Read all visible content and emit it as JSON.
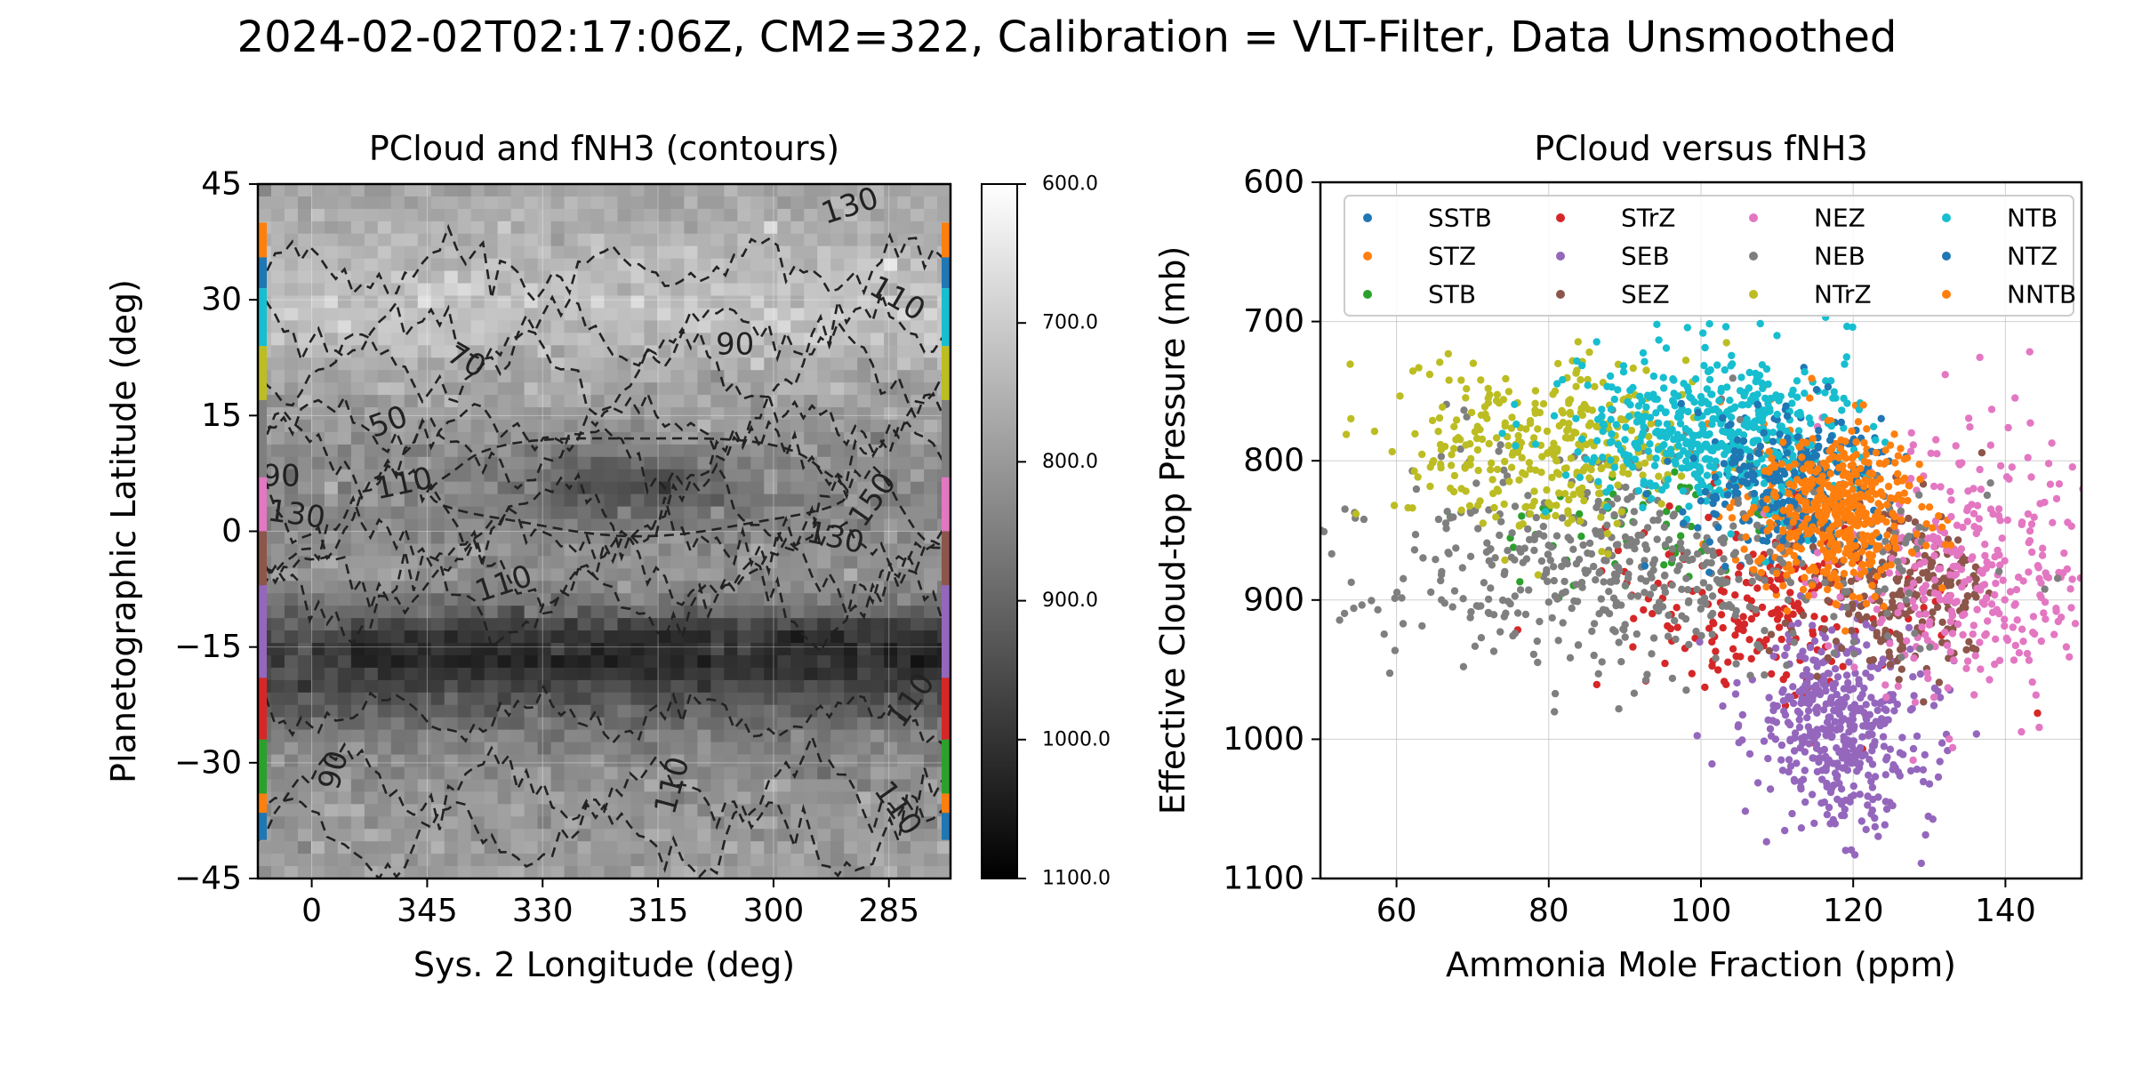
{
  "figure": {
    "suptitle": "2024-02-02T02:17:06Z, CM2=322, Calibration = VLT-Filter, Data Unsmoothed"
  },
  "chart_data": [
    {
      "type": "heatmap",
      "title": "PCloud and fNH3 (contours)",
      "xlabel": "Sys. 2 Longitude (deg)",
      "ylabel": "Planetographic Latitude (deg)",
      "xlim": [
        7,
        277
      ],
      "ylim": [
        -45,
        45
      ],
      "x_reversed": true,
      "xticks": [
        0,
        345,
        330,
        315,
        300,
        285
      ],
      "xtick_labels": [
        "0",
        "345",
        "330",
        "315",
        "300",
        "285"
      ],
      "yticks": [
        45,
        30,
        15,
        0,
        -15,
        -30,
        -45
      ],
      "ytick_labels": [
        "45",
        "30",
        "15",
        "0",
        "−15",
        "−30",
        "−45"
      ],
      "grid": true,
      "colormap": "gray_r",
      "colorbar": {
        "vmin": 600,
        "vmax": 1100,
        "ticks": [
          600,
          700,
          800,
          900,
          1000,
          1100
        ],
        "tick_labels": [
          "600.0",
          "700.0",
          "800.0",
          "900.0",
          "1000.0",
          "1100.0"
        ]
      },
      "profile_lat": [
        45,
        40,
        35,
        30,
        25,
        20,
        15,
        10,
        5,
        0,
        -5,
        -10,
        -13,
        -17,
        -22,
        -27,
        -32,
        -37,
        -45
      ],
      "profile_pressure": [
        780,
        760,
        740,
        715,
        730,
        770,
        790,
        820,
        830,
        830,
        800,
        880,
        1000,
        1020,
        930,
        850,
        820,
        800,
        790
      ],
      "contour_labels": [
        {
          "text": "130",
          "x": 290,
          "y": 42,
          "angle": -18
        },
        {
          "text": "110",
          "x": 284,
          "y": 30,
          "angle": 30
        },
        {
          "text": "90",
          "x": 305,
          "y": 24,
          "angle": 0
        },
        {
          "text": "70",
          "x": 340,
          "y": 22,
          "angle": 30
        },
        {
          "text": "50",
          "x": 350,
          "y": 14,
          "angle": -20
        },
        {
          "text": "90",
          "x": 364,
          "y": 7,
          "angle": 0
        },
        {
          "text": "110",
          "x": 348,
          "y": 6,
          "angle": -12
        },
        {
          "text": "130",
          "x": 362,
          "y": 2,
          "angle": 8
        },
        {
          "text": "150",
          "x": 287,
          "y": 4,
          "angle": -55
        },
        {
          "text": "130",
          "x": 292,
          "y": -1,
          "angle": 12
        },
        {
          "text": "110",
          "x": 335,
          "y": -7,
          "angle": -18
        },
        {
          "text": "90",
          "x": 357,
          "y": -31,
          "angle": -75
        },
        {
          "text": "110",
          "x": 313,
          "y": -33,
          "angle": -75
        },
        {
          "text": "110",
          "x": 282,
          "y": -22,
          "angle": -55
        },
        {
          "text": "110",
          "x": 284,
          "y": -36,
          "angle": 55
        }
      ],
      "belt_bands": [
        {
          "name": "NNTB",
          "lat": [
            35.5,
            40
          ],
          "color": "#ff7f0e"
        },
        {
          "name": "NTZ",
          "lat": [
            31.5,
            35.5
          ],
          "color": "#1f77b4"
        },
        {
          "name": "NTB",
          "lat": [
            24,
            31.5
          ],
          "color": "#17becf"
        },
        {
          "name": "NTrZ",
          "lat": [
            17,
            24
          ],
          "color": "#bcbd22"
        },
        {
          "name": "NEB",
          "lat": [
            7,
            17
          ],
          "color": "#7f7f7f"
        },
        {
          "name": "NEZ",
          "lat": [
            0,
            7
          ],
          "color": "#e377c2"
        },
        {
          "name": "SEZ",
          "lat": [
            -7,
            0
          ],
          "color": "#8c564b"
        },
        {
          "name": "SEB",
          "lat": [
            -19,
            -7
          ],
          "color": "#9467bd"
        },
        {
          "name": "STrZ",
          "lat": [
            -27,
            -19
          ],
          "color": "#d62728"
        },
        {
          "name": "STB",
          "lat": [
            -34,
            -27
          ],
          "color": "#2ca02c"
        },
        {
          "name": "STZ",
          "lat": [
            -36.5,
            -34
          ],
          "color": "#ff7f0e"
        },
        {
          "name": "SSTB",
          "lat": [
            -40,
            -36.5
          ],
          "color": "#1f77b4"
        }
      ]
    },
    {
      "type": "scatter",
      "title": "PCloud versus fNH3",
      "xlabel": "Ammonia Mole Fraction (ppm)",
      "ylabel": "Effective Cloud-top Pressure (mb)",
      "xlim": [
        50,
        150
      ],
      "ylim": [
        1100,
        600
      ],
      "xticks": [
        60,
        80,
        100,
        120,
        140
      ],
      "xtick_labels": [
        "60",
        "80",
        "100",
        "120",
        "140"
      ],
      "yticks": [
        600,
        700,
        800,
        900,
        1000,
        1100
      ],
      "ytick_labels": [
        "600",
        "700",
        "800",
        "900",
        "1000",
        "1100"
      ],
      "grid": true,
      "legend_position": "top",
      "series": [
        {
          "name": "SSTB",
          "color": "#1f77b4",
          "n": 120,
          "mx": 113,
          "sx": 6,
          "my": 820,
          "sy": 30
        },
        {
          "name": "STZ",
          "color": "#ff7f0e",
          "n": 100,
          "mx": 113,
          "sx": 7,
          "my": 825,
          "sy": 30
        },
        {
          "name": "STB",
          "color": "#2ca02c",
          "n": 60,
          "mx": 95,
          "sx": 12,
          "my": 850,
          "sy": 25
        },
        {
          "name": "STrZ",
          "color": "#d62728",
          "n": 200,
          "mx": 108,
          "sx": 10,
          "my": 905,
          "sy": 35
        },
        {
          "name": "SEB",
          "color": "#9467bd",
          "n": 450,
          "mx": 118,
          "sx": 6,
          "my": 990,
          "sy": 35
        },
        {
          "name": "SEZ",
          "color": "#8c564b",
          "n": 230,
          "mx": 127,
          "sx": 6,
          "my": 890,
          "sy": 28
        },
        {
          "name": "NEZ",
          "color": "#e377c2",
          "n": 330,
          "mx": 135,
          "sx": 8,
          "my": 880,
          "sy": 45
        },
        {
          "name": "NEB",
          "color": "#7f7f7f",
          "n": 550,
          "mx": 92,
          "sx": 18,
          "my": 870,
          "sy": 40
        },
        {
          "name": "NTrZ",
          "color": "#bcbd22",
          "n": 330,
          "mx": 80,
          "sx": 10,
          "my": 790,
          "sy": 30
        },
        {
          "name": "NTB",
          "color": "#17becf",
          "n": 500,
          "mx": 102,
          "sx": 9,
          "my": 780,
          "sy": 28
        },
        {
          "name": "NTZ",
          "color": "#1f77b4",
          "n": 180,
          "mx": 112,
          "sx": 6,
          "my": 815,
          "sy": 28
        },
        {
          "name": "NNTB",
          "color": "#ff7f0e",
          "n": 400,
          "mx": 118,
          "sx": 5,
          "my": 840,
          "sy": 28
        }
      ]
    }
  ]
}
